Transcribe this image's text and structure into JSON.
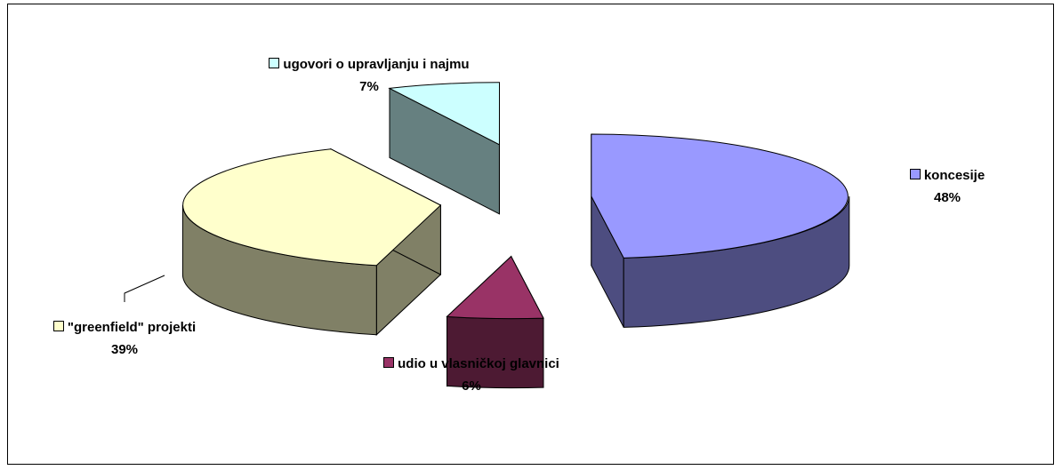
{
  "chart_data": {
    "type": "pie3d",
    "categories": [
      "koncesije",
      "udio u vlasničkoj glavnici",
      "\"greenfield\" projekti",
      "ugovori o upravljanju i najmu"
    ],
    "values": [
      48,
      6,
      39,
      7
    ],
    "value_labels": [
      "48%",
      "6%",
      "39%",
      "7%"
    ],
    "colors": [
      "#9999FF",
      "#993366",
      "#FFFFCC",
      "#CCFFFF"
    ]
  }
}
